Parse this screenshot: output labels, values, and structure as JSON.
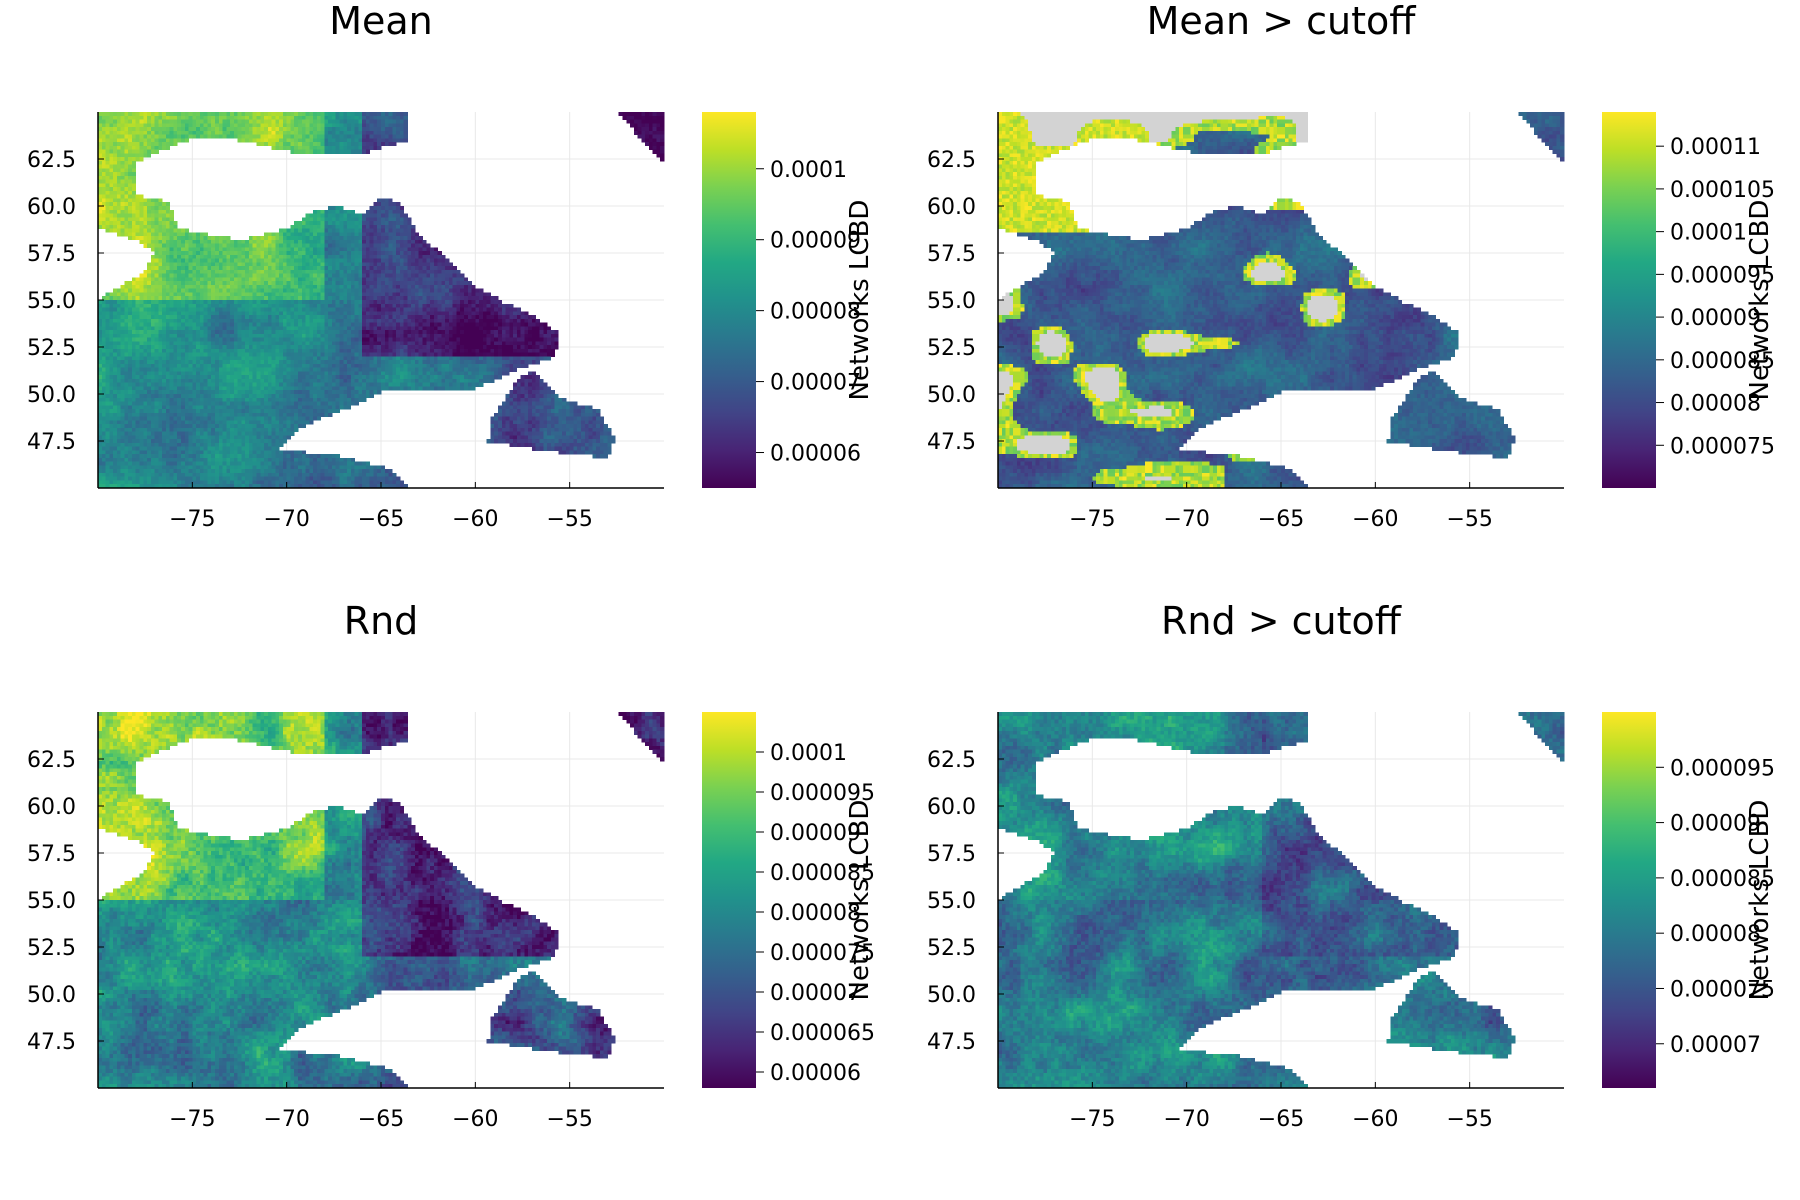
{
  "chart_data": [
    {
      "type": "heatmap",
      "title": "Mean",
      "xlabel": "",
      "ylabel": "",
      "xlim": [
        -80,
        -50
      ],
      "ylim": [
        45,
        65
      ],
      "xticks": [
        "−75",
        "−70",
        "−65",
        "−60",
        "−55"
      ],
      "yticks": [
        "47.5",
        "50.0",
        "52.5",
        "55.0",
        "57.5",
        "60.0",
        "62.5"
      ],
      "grid": true,
      "colormap": "viridis",
      "colorbar": {
        "label": "Networks LCBD",
        "range": [
          5.5e-05,
          0.000108
        ],
        "ticks": [
          "0.00006",
          "0.00007",
          "0.00008",
          "0.00009",
          "0.0001"
        ]
      },
      "missing_color": "#ffffff"
    },
    {
      "type": "heatmap",
      "title": "Mean > cutoff",
      "xlabel": "",
      "ylabel": "",
      "xlim": [
        -80,
        -50
      ],
      "ylim": [
        45,
        65
      ],
      "xticks": [
        "−75",
        "−70",
        "−65",
        "−60",
        "−55"
      ],
      "yticks": [
        "47.5",
        "50.0",
        "52.5",
        "55.0",
        "57.5",
        "60.0",
        "62.5"
      ],
      "grid": true,
      "colormap": "viridis",
      "colorbar": {
        "label": "Networks LCBD",
        "range": [
          7e-05,
          0.000114
        ],
        "ticks": [
          "0.000075",
          "0.00008",
          "0.000085",
          "0.00009",
          "0.000095",
          "0.0001",
          "0.000105",
          "0.00011"
        ]
      },
      "missing_color": "#d3d3d3"
    },
    {
      "type": "heatmap",
      "title": "Rnd",
      "xlabel": "",
      "ylabel": "",
      "xlim": [
        -80,
        -50
      ],
      "ylim": [
        45,
        65
      ],
      "xticks": [
        "−75",
        "−70",
        "−65",
        "−60",
        "−55"
      ],
      "yticks": [
        "47.5",
        "50.0",
        "52.5",
        "55.0",
        "57.5",
        "60.0",
        "62.5"
      ],
      "grid": true,
      "colormap": "viridis",
      "colorbar": {
        "label": "Networks LCBD",
        "range": [
          5.8e-05,
          0.000105
        ],
        "ticks": [
          "0.00006",
          "0.000065",
          "0.00007",
          "0.000075",
          "0.00008",
          "0.000085",
          "0.00009",
          "0.000095",
          "0.0001"
        ]
      },
      "missing_color": "#ffffff"
    },
    {
      "type": "heatmap",
      "title": "Rnd > cutoff",
      "xlabel": "",
      "ylabel": "",
      "xlim": [
        -80,
        -50
      ],
      "ylim": [
        45,
        65
      ],
      "xticks": [
        "−75",
        "−70",
        "−65",
        "−60",
        "−55"
      ],
      "yticks": [
        "47.5",
        "50.0",
        "52.5",
        "55.0",
        "57.5",
        "60.0",
        "62.5"
      ],
      "grid": true,
      "colormap": "viridis",
      "colorbar": {
        "label": "Networks LCBD",
        "range": [
          6.6e-05,
          0.0001
        ],
        "ticks": [
          "0.00007",
          "0.000075",
          "0.00008",
          "0.000085",
          "0.00009",
          "0.000095"
        ]
      },
      "missing_color": "#ffffff"
    }
  ]
}
